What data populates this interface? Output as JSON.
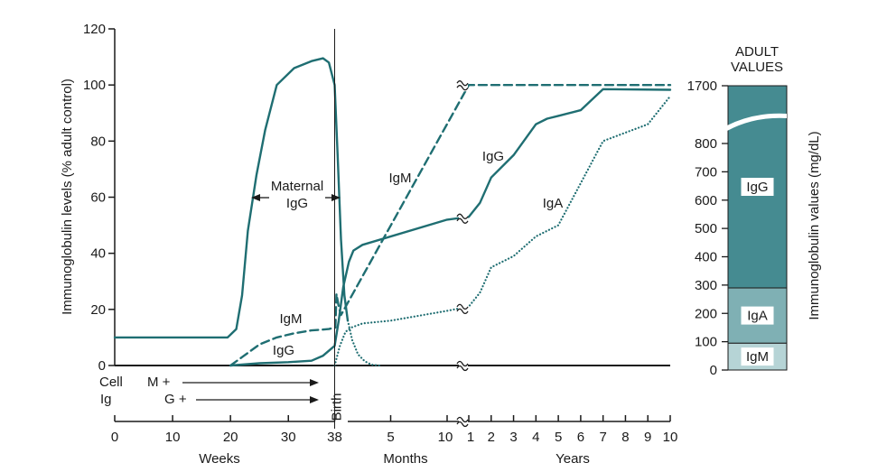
{
  "colors": {
    "line": "#1f6e72",
    "igg_bar": "#458b91",
    "iga_bar": "#7fb0b4",
    "igm_bar": "#b6d4d6",
    "axis": "#1a1a1a"
  },
  "chart_data": [
    {
      "type": "line",
      "ylabel": "Immunoglobulin levels (% adult control)",
      "ylim": [
        0,
        120
      ],
      "y_ticks": [
        "0",
        "20",
        "40",
        "60",
        "80",
        "100",
        "120"
      ],
      "x_segments": [
        {
          "label": "Weeks",
          "range": [
            0,
            38
          ],
          "ticks": [
            "0",
            "10",
            "20",
            "30",
            "38"
          ]
        },
        {
          "label": "Months",
          "range": [
            0,
            10
          ],
          "ticks": [
            "5",
            "10"
          ]
        },
        {
          "label": "Years",
          "range": [
            1,
            10
          ],
          "ticks": [
            "1",
            "2",
            "3",
            "4",
            "5",
            "6",
            "7",
            "8",
            "9",
            "10"
          ]
        }
      ],
      "birth_label": "Birth",
      "series": [
        {
          "name": "Maternal IgG",
          "style": "solid",
          "points": [
            [
              "w",
              0,
              10
            ],
            [
              "w",
              19.5,
              10
            ],
            [
              "w",
              21,
              13
            ],
            [
              "w",
              22,
              25
            ],
            [
              "w",
              23,
              48
            ],
            [
              "w",
              24.5,
              68
            ],
            [
              "w",
              26,
              84
            ],
            [
              "w",
              28,
              100
            ],
            [
              "w",
              31,
              106
            ],
            [
              "w",
              34,
              108.5
            ],
            [
              "w",
              36,
              109.5
            ],
            [
              "w",
              37,
              108
            ],
            [
              "w",
              38,
              100
            ],
            [
              "m",
              0.3,
              75
            ],
            [
              "m",
              0.6,
              45
            ],
            [
              "m",
              0.9,
              25
            ],
            [
              "m",
              1.2,
              16
            ]
          ]
        },
        {
          "name": "Maternal IgG decline",
          "style": "dotted",
          "points": [
            [
              "m",
              1.2,
              16
            ],
            [
              "m",
              1.6,
              9
            ],
            [
              "m",
              2.1,
              4
            ],
            [
              "m",
              2.7,
              1.5
            ],
            [
              "m",
              3.3,
              0.3
            ],
            [
              "m",
              4,
              0
            ]
          ]
        },
        {
          "name": "IgM",
          "style": "dashed",
          "points": [
            [
              "w",
              20,
              0
            ],
            [
              "w",
              22,
              3
            ],
            [
              "w",
              25,
              7.5
            ],
            [
              "w",
              28,
              10
            ],
            [
              "w",
              31,
              11.5
            ],
            [
              "w",
              34,
              12.5
            ],
            [
              "w",
              37,
              13
            ],
            [
              "w",
              38,
              13.5
            ],
            [
              "m",
              0.1,
              13.5
            ],
            [
              "m",
              0.2,
              25.5
            ],
            [
              "m",
              0.4,
              21
            ],
            [
              "m",
              0.6,
              18
            ],
            [
              "y",
              1,
              100
            ],
            [
              "y",
              10,
              100
            ]
          ]
        },
        {
          "name": "IgG",
          "style": "solid",
          "points": [
            [
              "w",
              20,
              0
            ],
            [
              "w",
              25,
              0.8
            ],
            [
              "w",
              30,
              1.2
            ],
            [
              "w",
              34,
              1.7
            ],
            [
              "w",
              36,
              3.5
            ],
            [
              "w",
              38,
              7
            ],
            [
              "m",
              0.4,
              16
            ],
            [
              "m",
              0.8,
              28
            ],
            [
              "m",
              1.3,
              37
            ],
            [
              "m",
              1.7,
              41
            ],
            [
              "m",
              2.5,
              43
            ],
            [
              "m",
              10,
              52
            ],
            [
              "y",
              1,
              53
            ],
            [
              "y",
              1.5,
              58
            ],
            [
              "y",
              2,
              67
            ],
            [
              "y",
              3,
              75
            ],
            [
              "y",
              4,
              86
            ],
            [
              "y",
              4.5,
              88
            ],
            [
              "y",
              5,
              89
            ],
            [
              "y",
              6,
              91
            ],
            [
              "y",
              7,
              98.5
            ],
            [
              "y",
              10,
              98.3
            ]
          ]
        },
        {
          "name": "IgA",
          "style": "dotted",
          "points": [
            [
              "w",
              38,
              0
            ],
            [
              "m",
              0.5,
              7
            ],
            [
              "m",
              1,
              12
            ],
            [
              "m",
              1.5,
              13.5
            ],
            [
              "m",
              2.5,
              15
            ],
            [
              "m",
              5,
              16
            ],
            [
              "m",
              10,
              19.5
            ],
            [
              "y",
              1,
              21
            ],
            [
              "y",
              1.5,
              26
            ],
            [
              "y",
              2,
              35
            ],
            [
              "y",
              3,
              39
            ],
            [
              "y",
              4,
              46
            ],
            [
              "y",
              5,
              50
            ],
            [
              "y",
              6,
              65
            ],
            [
              "y",
              7,
              80
            ],
            [
              "y",
              8,
              83
            ],
            [
              "y",
              9,
              86
            ],
            [
              "y",
              10,
              96
            ]
          ]
        }
      ],
      "annotations": {
        "maternal_igg": [
          "Maternal",
          "IgG"
        ],
        "igm_fetal": "IgM",
        "igg_fetal": "IgG",
        "igm_postnatal": "IgM",
        "igg_postnatal": "IgG",
        "iga_postnatal": "IgA"
      },
      "cell_ig": {
        "row_labels": [
          "Cell",
          "Ig"
        ],
        "m_label": "M +",
        "g_label": "G +"
      }
    },
    {
      "type": "bar",
      "title": [
        "ADULT",
        "VALUES"
      ],
      "ylabel": "Immunoglobulin values (mg/dL)",
      "y_ticks": [
        "0",
        "100",
        "200",
        "300",
        "400",
        "500",
        "600",
        "700",
        "800",
        "1700"
      ],
      "axis_break": [
        850,
        1650
      ],
      "stack": [
        {
          "name": "IgM",
          "from": 0,
          "to": 95
        },
        {
          "name": "IgA",
          "from": 95,
          "to": 290
        },
        {
          "name": "IgG",
          "from": 290,
          "to": 1700
        }
      ]
    }
  ]
}
